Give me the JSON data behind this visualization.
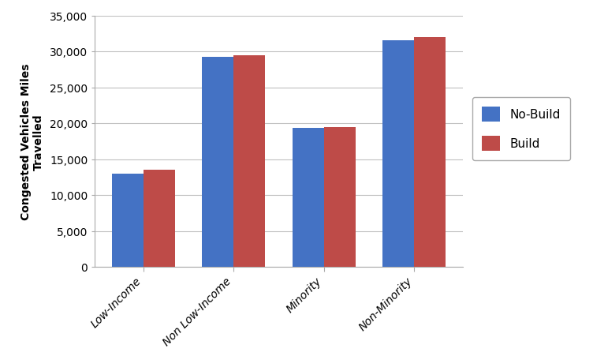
{
  "categories": [
    "Low-Income",
    "Non Low-Income",
    "Minority",
    "Non-Minority"
  ],
  "no_build": [
    13000,
    29200,
    19300,
    31500
  ],
  "build": [
    13500,
    29500,
    19400,
    32000
  ],
  "no_build_color": "#4472C4",
  "build_color": "#BE4B48",
  "ylabel": "Congested Vehicles Miles\nTravelled",
  "ylim": [
    0,
    35000
  ],
  "yticks": [
    0,
    5000,
    10000,
    15000,
    20000,
    25000,
    30000,
    35000
  ],
  "legend_labels": [
    "No-Build",
    "Build"
  ],
  "bar_width": 0.35,
  "figure_bg": "#FFFFFF",
  "plot_bg": "#FFFFFF",
  "grid_color": "#C0C0C0"
}
